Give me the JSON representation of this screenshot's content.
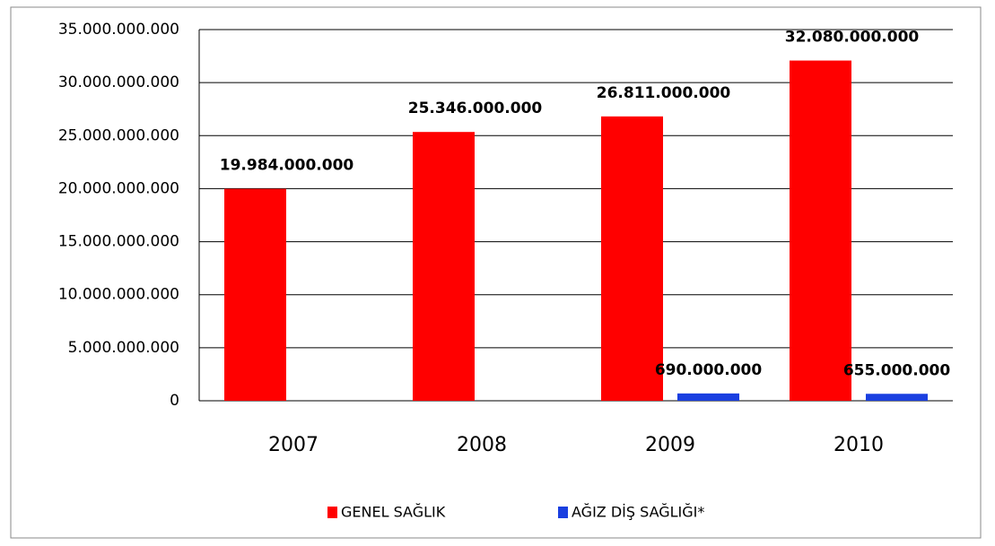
{
  "chart_data": {
    "type": "bar",
    "categories": [
      "2007",
      "2008",
      "2009",
      "2010"
    ],
    "series": [
      {
        "name": "GENEL SAĞLIK",
        "color": "#ff0000",
        "values": [
          19984000000,
          25346000000,
          26811000000,
          32080000000
        ],
        "value_labels": [
          "19.984.000.000",
          "25.346.000.000",
          "26.811.000.000",
          "32.080.000.000"
        ]
      },
      {
        "name": "AĞIZ DİŞ SAĞLIĞI*",
        "color": "#1a3fe0",
        "values": [
          null,
          null,
          690000000,
          655000000
        ],
        "value_labels": [
          null,
          null,
          "690.000.000",
          "655.000.000"
        ]
      }
    ],
    "ylim": [
      0,
      35000000000
    ],
    "yticks": [
      0,
      {
        "value": 5000000000,
        "label": "5.000.000.000"
      },
      {
        "value": 10000000000,
        "label": "10.000.000.000"
      },
      {
        "value": 15000000000,
        "label": "15.000.000.000"
      },
      {
        "value": 20000000000,
        "label": "20.000.000.000"
      },
      {
        "value": 25000000000,
        "label": "25.000.000.000"
      },
      {
        "value": 30000000000,
        "label": "30.000.000.000"
      },
      {
        "value": 35000000000,
        "label": "35.000.000.000"
      }
    ],
    "grid": true,
    "legend": "bottom"
  }
}
